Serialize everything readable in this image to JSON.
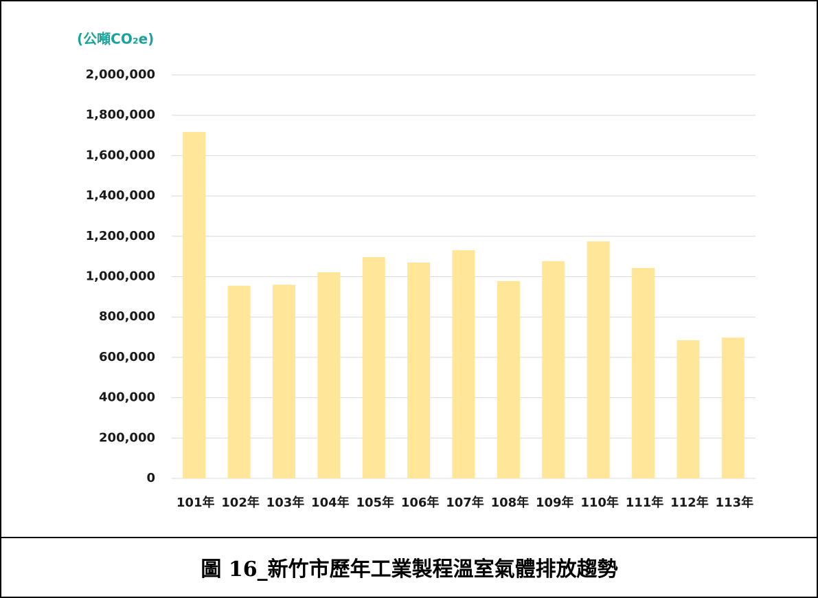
{
  "chart_data": {
    "type": "bar",
    "title": "圖 16_新竹市歷年工業製程溫室氣體排放趨勢",
    "y_label": "(公噸CO₂e)",
    "categories": [
      "101年",
      "102年",
      "103年",
      "104年",
      "105年",
      "106年",
      "107年",
      "108年",
      "109年",
      "110年",
      "111年",
      "112年",
      "113年"
    ],
    "values": [
      1717000,
      955000,
      960000,
      1022000,
      1097000,
      1070000,
      1131000,
      978000,
      1077000,
      1175000,
      1043000,
      685000,
      698000
    ],
    "color": "#ffe699",
    "ylim": [
      0,
      2000000
    ],
    "yticks": [
      0,
      {
        "value": 200000,
        "label": "200,000"
      },
      {
        "value": 400000,
        "label": "400,000"
      },
      {
        "value": 600000,
        "label": "600,000"
      },
      {
        "value": 800000,
        "label": "800,000"
      },
      {
        "value": 1000000,
        "label": "1,000,000"
      },
      {
        "value": 1200000,
        "label": "1,200,000"
      },
      {
        "value": 1400000,
        "label": "1,400,000"
      },
      {
        "value": 1600000,
        "label": "1,600,000"
      },
      {
        "value": 1800000,
        "label": "1,800,000"
      },
      {
        "value": 2000000,
        "label": "2,000,000"
      }
    ],
    "grid": true
  }
}
